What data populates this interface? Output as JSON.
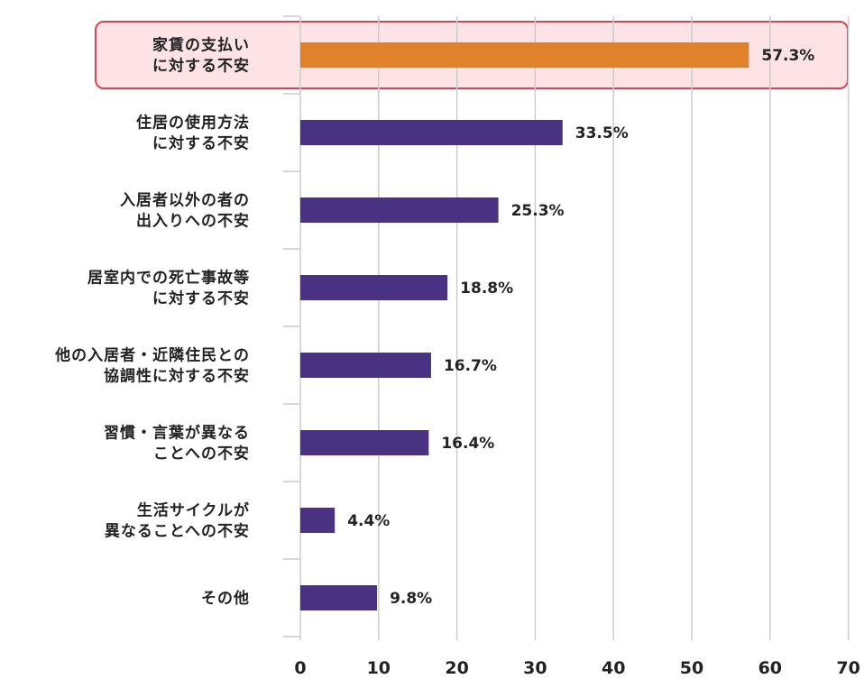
{
  "chart_data": {
    "type": "bar",
    "orientation": "horizontal",
    "categories": [
      [
        "家賃の支払い",
        "に対する不安"
      ],
      [
        "住居の使用方法",
        "に対する不安"
      ],
      [
        "入居者以外の者の",
        "出入りへの不安"
      ],
      [
        "居室内での死亡事故等",
        "に対する不安"
      ],
      [
        "他の入居者・近隣住民との",
        "協調性に対する不安"
      ],
      [
        "習慣・言葉が異なる",
        "ことへの不安"
      ],
      [
        "生活サイクルが",
        "異なることへの不安"
      ],
      [
        "その他"
      ]
    ],
    "values": [
      57.3,
      33.5,
      25.3,
      18.8,
      16.7,
      16.4,
      4.4,
      9.8
    ],
    "value_labels": [
      "57.3%",
      "33.5%",
      "25.3%",
      "18.8%",
      "16.7%",
      "16.4%",
      "4.4%",
      "9.8%"
    ],
    "highlight_index": 0,
    "xlim": [
      0,
      70
    ],
    "xticks": [
      "0",
      "10",
      "20",
      "30",
      "40",
      "50",
      "60",
      "70"
    ],
    "xtick_values": [
      0,
      10,
      20,
      30,
      40,
      50,
      60,
      70
    ],
    "grid": true,
    "colors": {
      "bar": "#4a3282",
      "highlight_bar": "#e0822b",
      "highlight_fill": "#fde3e6",
      "highlight_border": "#d94452",
      "grid": "#cccccc"
    }
  }
}
